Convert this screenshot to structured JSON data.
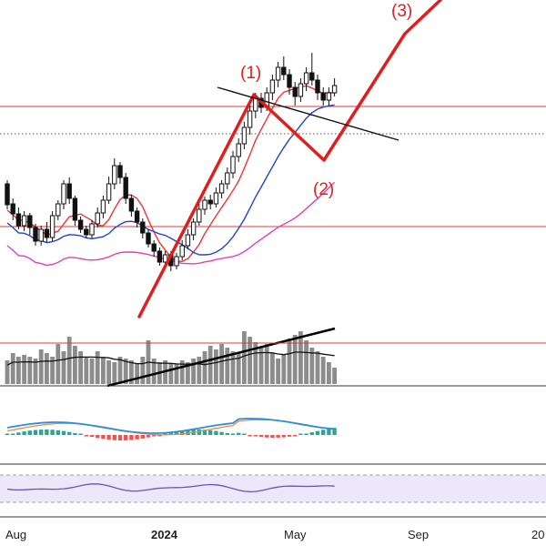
{
  "chart_data": {
    "type": "candlestick",
    "title": "",
    "time_axis": {
      "tick_labels": [
        "Aug",
        "2024",
        "May",
        "Sep",
        "20"
      ],
      "bold_labels": [
        "2024"
      ]
    },
    "price_ohlc": [
      [
        318,
        295,
        322,
        290
      ],
      [
        296,
        285,
        302,
        278
      ],
      [
        285,
        272,
        292,
        268
      ],
      [
        272,
        283,
        288,
        266
      ],
      [
        283,
        270,
        286,
        262
      ],
      [
        270,
        255,
        274,
        250
      ],
      [
        255,
        268,
        272,
        250
      ],
      [
        268,
        259,
        276,
        254
      ],
      [
        259,
        283,
        288,
        255
      ],
      [
        283,
        296,
        300,
        278
      ],
      [
        296,
        318,
        322,
        290
      ],
      [
        318,
        302,
        325,
        296
      ],
      [
        302,
        278,
        305,
        272
      ],
      [
        278,
        268,
        282,
        264
      ],
      [
        268,
        262,
        272,
        258
      ],
      [
        262,
        274,
        278,
        258
      ],
      [
        274,
        286,
        292,
        270
      ],
      [
        286,
        300,
        305,
        280
      ],
      [
        300,
        318,
        326,
        296
      ],
      [
        318,
        338,
        346,
        312
      ],
      [
        338,
        325,
        342,
        318
      ],
      [
        325,
        302,
        330,
        296
      ],
      [
        302,
        288,
        306,
        282
      ],
      [
        288,
        276,
        292,
        270
      ],
      [
        276,
        264,
        280,
        258
      ],
      [
        264,
        252,
        268,
        248
      ],
      [
        252,
        244,
        256,
        238
      ],
      [
        244,
        232,
        248,
        228
      ],
      [
        232,
        240,
        244,
        226
      ],
      [
        240,
        228,
        244,
        222
      ],
      [
        228,
        238,
        242,
        224
      ],
      [
        238,
        250,
        256,
        234
      ],
      [
        250,
        262,
        268,
        246
      ],
      [
        262,
        276,
        280,
        256
      ],
      [
        276,
        290,
        296,
        272
      ],
      [
        290,
        300,
        304,
        284
      ],
      [
        300,
        296,
        306,
        290
      ],
      [
        296,
        308,
        314,
        292
      ],
      [
        308,
        318,
        322,
        302
      ],
      [
        318,
        330,
        336,
        312
      ],
      [
        330,
        348,
        354,
        324
      ],
      [
        348,
        362,
        368,
        342
      ],
      [
        362,
        380,
        386,
        356
      ],
      [
        380,
        398,
        404,
        372
      ],
      [
        398,
        412,
        418,
        390
      ],
      [
        412,
        402,
        418,
        396
      ],
      [
        402,
        418,
        424,
        398
      ],
      [
        418,
        432,
        438,
        410
      ],
      [
        432,
        446,
        452,
        424
      ],
      [
        446,
        438,
        458,
        432
      ],
      [
        438,
        424,
        444,
        416
      ],
      [
        424,
        414,
        430,
        404
      ],
      [
        414,
        428,
        434,
        408
      ],
      [
        428,
        440,
        446,
        420
      ],
      [
        440,
        432,
        462,
        426
      ],
      [
        432,
        418,
        438,
        410
      ],
      [
        418,
        410,
        424,
        404
      ],
      [
        410,
        418,
        424,
        404
      ],
      [
        418,
        426,
        434,
        414
      ]
    ],
    "moving_averages": [
      {
        "color": "#ee3333"
      },
      {
        "color": "#2244cc"
      },
      {
        "color": "#e040b8"
      }
    ],
    "horizontal_levels": [
      {
        "kind": "resistance",
        "color": "#e23a3a"
      },
      {
        "kind": "support",
        "color": "#e23a3a"
      },
      {
        "kind": "lower",
        "color": "#e23a3a"
      },
      {
        "kind": "last_price",
        "color": "#555555",
        "style": "dotted"
      }
    ],
    "pattern_labels": [
      "(1)",
      "(2)",
      "(3)"
    ],
    "volume": [
      26,
      34,
      30,
      32,
      30,
      28,
      38,
      34,
      30,
      44,
      36,
      52,
      42,
      36,
      30,
      28,
      36,
      30,
      26,
      24,
      30,
      28,
      26,
      22,
      30,
      48,
      28,
      24,
      26,
      22,
      22,
      26,
      24,
      28,
      30,
      36,
      42,
      38,
      44,
      40,
      36,
      34,
      58,
      52,
      46,
      40,
      44,
      34,
      28,
      32,
      50,
      54,
      58,
      48,
      40,
      36,
      30,
      24,
      18
    ],
    "volume_indicator_colors": {
      "up_bar": "#8c8c8c",
      "ma_line": "#111111",
      "trend_line": "#000000"
    },
    "macd": {
      "macd_color": "#2b8fe0",
      "signal_color": "#f08a3c",
      "hist_pos_color": "#26a69a",
      "hist_neg_color": "#ef5350"
    },
    "rsi": {
      "line_color": "#6a52b8",
      "band_fill": "#ece8fa"
    }
  }
}
